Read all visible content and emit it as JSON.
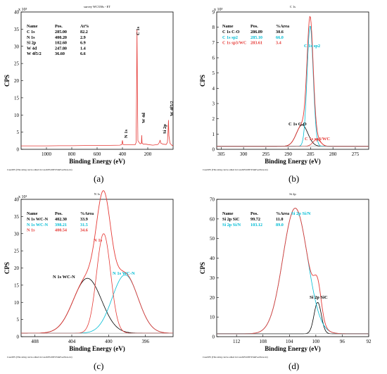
{
  "panels": [
    {
      "letter": "(a)",
      "title": "survey WC350s - ET",
      "ylabel": "CPS",
      "xlabel": "Binding Energy (eV)",
      "footer": "CasaXPS (This string can be edited in CasaXPS.DEF/PrintFootNote.txt)",
      "multiplier_label": "x 10³",
      "table_header": [
        "Name",
        "Pos.",
        "At%"
      ],
      "table_rows": [
        {
          "name": "C 1s",
          "pos": "285.00",
          "val": "82.2",
          "color": "#000000"
        },
        {
          "name": "N 1s",
          "pos": "400.20",
          "val": "2.9",
          "color": "#000000"
        },
        {
          "name": "Si 2p",
          "pos": "102.60",
          "val": "6.9",
          "color": "#000000"
        },
        {
          "name": "W 4d",
          "pos": "247.80",
          "val": "1.4",
          "color": "#000000"
        },
        {
          "name": "W 4f5/2",
          "pos": "36.60",
          "val": "6.6",
          "color": "#000000"
        }
      ],
      "peak_labels": [
        "N 1s",
        "C 1s",
        "W 4d",
        "Si 2p",
        "W 4f5/2"
      ]
    },
    {
      "letter": "(b)",
      "title": "C 1s",
      "ylabel": "CPS",
      "xlabel": "Binding Energy (eV)",
      "footer": "CasaXPS (This string can be edited in CasaXPS.DEF/PrintFootNote.txt)",
      "multiplier_label": "x 10³",
      "table_header": [
        "Name",
        "Pos.",
        "%Area"
      ],
      "table_rows": [
        {
          "name": "C 1s  C-O",
          "pos": "286.89",
          "val": "30.6",
          "color": "#000000"
        },
        {
          "name": "C 1s  sp2",
          "pos": "285.10",
          "val": "66.0",
          "color": "#00bcd4"
        },
        {
          "name": "C 1s  sp3/WC",
          "pos": "283.61",
          "val": "3.4",
          "color": "#e53935"
        }
      ],
      "peak_labels": [
        {
          "text": "C 1s  sp2",
          "color": "#00bcd4"
        },
        {
          "text": "C 1s C-O",
          "color": "#000000"
        },
        {
          "text": "C 1s sp3/WC",
          "color": "#e53935"
        }
      ]
    },
    {
      "letter": "(c)",
      "title": "N 1s",
      "ylabel": "CPS",
      "xlabel": "Binding Energy (eV)",
      "footer": "CasaXPS (This string can be edited in CasaXPS.DEF/PrintFootNote.txt)",
      "multiplier_label": "x 10¹",
      "table_header": [
        "Name",
        "Pos.",
        "%Area"
      ],
      "table_rows": [
        {
          "name": "N 1s  WC-N",
          "pos": "402.30",
          "val": "33.9",
          "color": "#000000"
        },
        {
          "name": "N 1s  WC-N",
          "pos": "398.21",
          "val": "31.5",
          "color": "#00bcd4"
        },
        {
          "name": "N 1s",
          "pos": "400.54",
          "val": "34.6",
          "color": "#e53935"
        }
      ],
      "peak_labels": [
        {
          "text": "N 1s",
          "color": "#e53935"
        },
        {
          "text": "N 1s  WC-N",
          "color": "#000000"
        },
        {
          "text": "N 1s WC-N",
          "color": "#00bcd4"
        }
      ]
    },
    {
      "letter": "(d)",
      "title": "Si 2p",
      "ylabel": "CPS",
      "xlabel": "Binding Energy (eV)",
      "footer": "CasaXPS (This string can be edited in CasaXPS.DEF/PrintFootNote.txt)",
      "multiplier_label": "",
      "table_header": [
        "Name",
        "Pos.",
        "%Area"
      ],
      "table_rows": [
        {
          "name": "Si 2p  SiC",
          "pos": "99.72",
          "val": "11.0",
          "color": "#000000"
        },
        {
          "name": "Si 2p Si/N",
          "pos": "103.12",
          "val": "89.0",
          "color": "#00bcd4"
        }
      ],
      "peak_labels": [
        {
          "text": "Si 2p Si/N",
          "color": "#00bcd4"
        },
        {
          "text": "Si 2p  SiC",
          "color": "#000000"
        }
      ]
    }
  ],
  "chart_data": [
    {
      "type": "line",
      "title": "survey WC350s - ET",
      "xlabel": "Binding Energy (eV)",
      "ylabel": "CPS",
      "y_multiplier": "x 10³",
      "xlim": [
        1200,
        0
      ],
      "ylim": [
        0,
        40
      ],
      "x_ticks": [
        1000,
        800,
        600,
        400,
        200
      ],
      "y_ticks": [
        0,
        5,
        10,
        15,
        20,
        25,
        30,
        35,
        40
      ],
      "series": [
        {
          "name": "",
          "color": "#e53935",
          "x": [
            1200,
            1100,
            1000,
            900,
            800,
            700,
            600,
            500,
            420,
            405,
            400,
            395,
            380,
            300,
            292,
            288,
            285,
            282,
            278,
            260,
            250,
            247.8,
            245,
            235,
            215,
            200,
            160,
            120,
            108,
            102.6,
            97,
            80,
            55,
            45,
            40,
            36.6,
            33,
            25,
            10,
            0
          ],
          "y": [
            1.0,
            1.0,
            1.0,
            1.05,
            1.05,
            1.1,
            1.1,
            1.15,
            1.2,
            1.4,
            2.6,
            1.4,
            1.3,
            1.3,
            2.0,
            18,
            35,
            18,
            2.5,
            1.6,
            1.8,
            4.1,
            1.8,
            1.5,
            1.5,
            1.4,
            1.2,
            1.4,
            2.0,
            2.7,
            1.8,
            1.5,
            1.4,
            2.0,
            5.0,
            8.5,
            4.0,
            1.8,
            1.2,
            1.0
          ]
        }
      ]
    },
    {
      "type": "line",
      "title": "C 1s",
      "xlabel": "Binding Energy (eV)",
      "ylabel": "CPS",
      "y_multiplier": "x 10³",
      "xlim": [
        306,
        272
      ],
      "ylim": [
        0,
        9
      ],
      "x_ticks": [
        305,
        300,
        295,
        290,
        285,
        280,
        275
      ],
      "y_ticks": [
        0,
        1,
        2,
        3,
        4,
        5,
        6,
        7,
        8,
        9
      ],
      "series": [
        {
          "name": "C 1s C-O",
          "color": "#000000",
          "center": 286.89,
          "height": 1.4,
          "fwhm": 3.0
        },
        {
          "name": "C 1s  sp2",
          "color": "#00bcd4",
          "center": 285.1,
          "height": 7.9,
          "fwhm": 1.6
        },
        {
          "name": "C 1s  sp3/WC",
          "color": "#e53935",
          "center": 283.61,
          "height": 0.45,
          "fwhm": 2.0
        },
        {
          "name": "Envelope",
          "color": "#e53935",
          "background": 0.2
        }
      ]
    },
    {
      "type": "line",
      "title": "N 1s",
      "xlabel": "Binding Energy (eV)",
      "ylabel": "CPS",
      "y_multiplier": "x 10¹",
      "xlim": [
        409.5,
        393
      ],
      "ylim": [
        0,
        40
      ],
      "x_ticks": [
        408,
        404,
        400,
        396
      ],
      "y_ticks": [
        0,
        5,
        10,
        15,
        20,
        25,
        30,
        35,
        40
      ],
      "series": [
        {
          "name": "N 1s  WC-N",
          "color": "#000000",
          "center": 402.3,
          "height": 16,
          "fwhm": 3.6
        },
        {
          "name": "N 1s  WC-N",
          "color": "#00bcd4",
          "center": 398.21,
          "height": 17,
          "fwhm": 3.3
        },
        {
          "name": "N 1s",
          "color": "#e53935",
          "center": 400.54,
          "height": 29,
          "fwhm": 1.8
        },
        {
          "name": "Envelope",
          "color": "#e53935",
          "background": 1.0
        }
      ]
    },
    {
      "type": "line",
      "title": "Si 2p",
      "xlabel": "Binding Energy (eV)",
      "ylabel": "CPS",
      "xlim": [
        115,
        92
      ],
      "ylim": [
        0,
        70
      ],
      "x_ticks": [
        112,
        108,
        104,
        100,
        96,
        92
      ],
      "y_ticks": [
        0,
        10,
        20,
        30,
        40,
        50,
        60,
        70
      ],
      "series": [
        {
          "name": "Si 2p  SiC",
          "color": "#000000",
          "center": 99.72,
          "height": 16,
          "fwhm": 1.3
        },
        {
          "name": "Si 2p Si/N",
          "color": "#00bcd4",
          "center": 103.12,
          "height": 64,
          "fwhm": 4.4
        },
        {
          "name": "Envelope",
          "color": "#e53935",
          "background": 1.5
        }
      ]
    }
  ]
}
